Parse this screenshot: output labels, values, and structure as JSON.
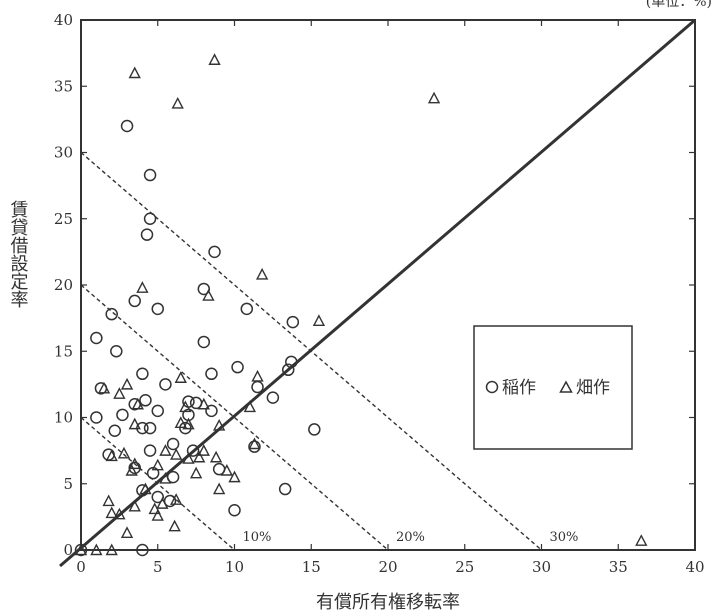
{
  "chart_data": {
    "type": "scatter",
    "unit_label": "(単位：%)",
    "xlabel": "有償所有権移転率",
    "ylabel": "賃貸借設定率",
    "xlim": [
      0,
      40
    ],
    "ylim": [
      0,
      40
    ],
    "x_ticks": [
      "0",
      "5",
      "10",
      "15",
      "20",
      "25",
      "30",
      "35",
      "40"
    ],
    "y_ticks": [
      "0",
      "5",
      "10",
      "15",
      "20",
      "25",
      "30",
      "35",
      "40"
    ],
    "isolines": [
      {
        "label": "10%",
        "value": 10
      },
      {
        "label": "20%",
        "value": 20
      },
      {
        "label": "30%",
        "value": 30
      }
    ],
    "legend": {
      "position": "right",
      "items": [
        {
          "symbol": "circle",
          "label": "稲作"
        },
        {
          "symbol": "triangle",
          "label": "畑作"
        }
      ]
    },
    "series": [
      {
        "name": "稲作",
        "marker": "circle",
        "points": [
          [
            0,
            0
          ],
          [
            4,
            0
          ],
          [
            3,
            32
          ],
          [
            4.5,
            28.3
          ],
          [
            4.5,
            25
          ],
          [
            4.3,
            23.8
          ],
          [
            8.7,
            22.5
          ],
          [
            2,
            17.8
          ],
          [
            3.5,
            18.8
          ],
          [
            5,
            18.2
          ],
          [
            8,
            19.7
          ],
          [
            10.8,
            18.2
          ],
          [
            13.8,
            17.2
          ],
          [
            1,
            16
          ],
          [
            2.3,
            15
          ],
          [
            8,
            15.7
          ],
          [
            4,
            13.3
          ],
          [
            8.5,
            13.3
          ],
          [
            10.2,
            13.8
          ],
          [
            13.5,
            13.6
          ],
          [
            13.7,
            14.2
          ],
          [
            1.3,
            12.2
          ],
          [
            3.5,
            11
          ],
          [
            4.2,
            11.3
          ],
          [
            5.5,
            12.5
          ],
          [
            7,
            11.2
          ],
          [
            7.5,
            11.1
          ],
          [
            11.5,
            12.3
          ],
          [
            12.5,
            11.5
          ],
          [
            1,
            10
          ],
          [
            2.7,
            10.2
          ],
          [
            5,
            10.5
          ],
          [
            7,
            10.2
          ],
          [
            8.5,
            10.5
          ],
          [
            2.2,
            9
          ],
          [
            4,
            9.2
          ],
          [
            4.5,
            9.2
          ],
          [
            6.8,
            9.2
          ],
          [
            15.2,
            9.1
          ],
          [
            4.5,
            7.5
          ],
          [
            6,
            8
          ],
          [
            7.3,
            7.5
          ],
          [
            11.3,
            7.8
          ],
          [
            1.8,
            7.2
          ],
          [
            3.5,
            6.2
          ],
          [
            4.7,
            5.8
          ],
          [
            6,
            5.5
          ],
          [
            9,
            6.1
          ],
          [
            13.3,
            4.6
          ],
          [
            4,
            4.5
          ],
          [
            5,
            4
          ],
          [
            5.8,
            3.7
          ],
          [
            10,
            3
          ]
        ]
      },
      {
        "name": "畑作",
        "marker": "triangle",
        "points": [
          [
            0,
            0
          ],
          [
            1,
            0
          ],
          [
            2,
            0
          ],
          [
            3.5,
            36
          ],
          [
            8.7,
            37
          ],
          [
            6.3,
            33.7
          ],
          [
            23,
            34.1
          ],
          [
            4,
            19.8
          ],
          [
            8.3,
            19.2
          ],
          [
            11.8,
            20.8
          ],
          [
            15.5,
            17.3
          ],
          [
            6.5,
            13
          ],
          [
            11.5,
            13.1
          ],
          [
            1.5,
            12.2
          ],
          [
            2.5,
            11.8
          ],
          [
            3,
            12.5
          ],
          [
            3.7,
            11
          ],
          [
            6.8,
            10.8
          ],
          [
            8,
            11
          ],
          [
            11,
            10.8
          ],
          [
            3.5,
            9.5
          ],
          [
            6.5,
            9.6
          ],
          [
            7,
            9.5
          ],
          [
            9,
            9.4
          ],
          [
            2,
            7.1
          ],
          [
            2.8,
            7.3
          ],
          [
            3.5,
            6.5
          ],
          [
            5,
            6.4
          ],
          [
            5.5,
            7.5
          ],
          [
            6.2,
            7.2
          ],
          [
            7,
            6.9
          ],
          [
            7.7,
            7
          ],
          [
            8,
            7.5
          ],
          [
            8.8,
            7
          ],
          [
            11.3,
            8
          ],
          [
            3.3,
            6
          ],
          [
            7.5,
            5.8
          ],
          [
            9.5,
            6
          ],
          [
            10,
            5.5
          ],
          [
            1.8,
            3.7
          ],
          [
            2.5,
            2.7
          ],
          [
            3.5,
            3.3
          ],
          [
            4.2,
            4.6
          ],
          [
            4.8,
            3.1
          ],
          [
            5,
            2.6
          ],
          [
            5.3,
            3.5
          ],
          [
            5.5,
            5.4
          ],
          [
            6.2,
            3.8
          ],
          [
            9,
            4.6
          ],
          [
            2,
            2.8
          ],
          [
            3,
            1.3
          ],
          [
            6.1,
            1.8
          ],
          [
            36.5,
            0.7
          ]
        ]
      }
    ]
  }
}
